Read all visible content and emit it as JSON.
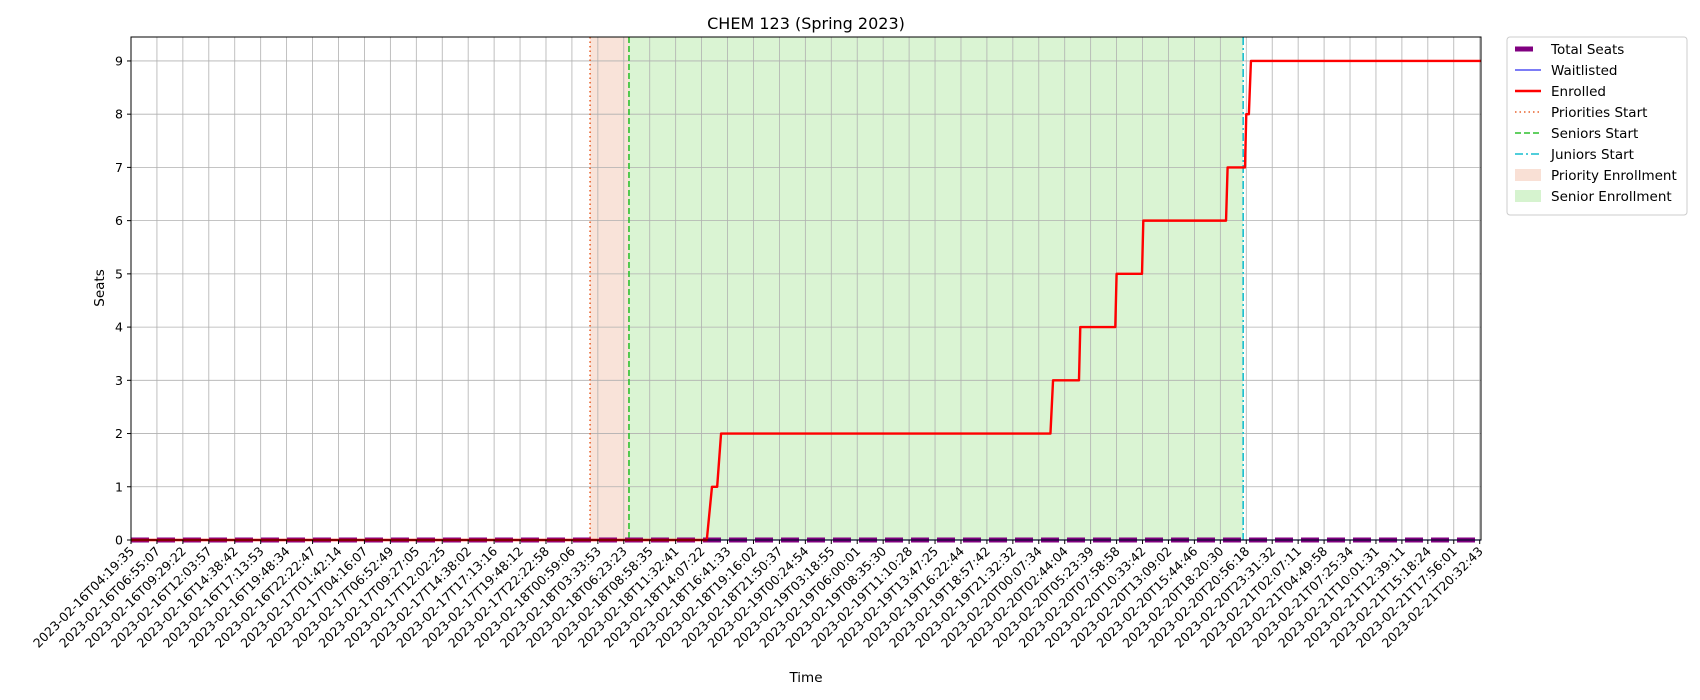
{
  "chart_data": {
    "type": "line",
    "title": "CHEM 123 (Spring 2023)",
    "xlabel": "Time",
    "ylabel": "Seats",
    "ylim": [
      0,
      9.45
    ],
    "yticks": [
      0,
      1,
      2,
      3,
      4,
      5,
      6,
      7,
      8,
      9
    ],
    "grid": true,
    "legend_position": "outside-top-right",
    "xticks": [
      "2023-02-16T04:19:35",
      "2023-02-16T06:55:07",
      "2023-02-16T09:29:22",
      "2023-02-16T12:03:57",
      "2023-02-16T14:38:42",
      "2023-02-16T17:13:53",
      "2023-02-16T19:48:34",
      "2023-02-16T22:22:47",
      "2023-02-17T01:42:14",
      "2023-02-17T04:16:07",
      "2023-02-17T06:52:49",
      "2023-02-17T09:27:05",
      "2023-02-17T12:02:25",
      "2023-02-17T14:38:02",
      "2023-02-17T17:13:16",
      "2023-02-17T19:48:12",
      "2023-02-17T22:22:58",
      "2023-02-18T00:59:06",
      "2023-02-18T03:33:53",
      "2023-02-18T06:23:23",
      "2023-02-18T08:58:35",
      "2023-02-18T11:32:41",
      "2023-02-18T14:07:22",
      "2023-02-18T16:41:33",
      "2023-02-18T19:16:02",
      "2023-02-18T21:50:37",
      "2023-02-19T00:24:54",
      "2023-02-19T03:18:55",
      "2023-02-19T06:00:01",
      "2023-02-19T08:35:30",
      "2023-02-19T11:10:28",
      "2023-02-19T13:47:25",
      "2023-02-19T16:22:44",
      "2023-02-19T18:57:42",
      "2023-02-19T21:32:32",
      "2023-02-20T00:07:34",
      "2023-02-20T02:44:04",
      "2023-02-20T05:23:39",
      "2023-02-20T07:58:58",
      "2023-02-20T10:33:42",
      "2023-02-20T13:09:02",
      "2023-02-20T15:44:46",
      "2023-02-20T18:20:30",
      "2023-02-20T20:56:18",
      "2023-02-20T23:31:32",
      "2023-02-21T02:07:11",
      "2023-02-21T04:49:58",
      "2023-02-21T07:25:34",
      "2023-02-21T10:01:31",
      "2023-02-21T12:39:11",
      "2023-02-21T15:18:24",
      "2023-02-21T17:56:01",
      "2023-02-21T20:32:43"
    ],
    "xlim_index": [
      0,
      52.05
    ],
    "spans": [
      {
        "name": "Priority Enrollment",
        "start": 17.7,
        "end": 19.2,
        "color": "#f4c7b3"
      },
      {
        "name": "Senior Enrollment",
        "start": 19.2,
        "end": 42.88,
        "color": "#b5eaa8"
      }
    ],
    "vlines": [
      {
        "name": "Priorities Start",
        "x": 17.7,
        "color": "#e8622c",
        "style": "dotted"
      },
      {
        "name": "Seniors Start",
        "x": 19.2,
        "color": "#2fc12f",
        "style": "dashed"
      },
      {
        "name": "Juniors Start",
        "x": 42.88,
        "color": "#17becf",
        "style": "dashdot"
      }
    ],
    "series": [
      {
        "name": "Total Seats",
        "color": "#800080",
        "style": "dashed-thick",
        "points": [
          [
            0,
            0
          ],
          [
            52.05,
            0
          ]
        ]
      },
      {
        "name": "Waitlisted",
        "color": "#2f2ff0",
        "style": "solid-thin",
        "points": [
          [
            0,
            0
          ],
          [
            52.05,
            0
          ]
        ]
      },
      {
        "name": "Enrolled",
        "color": "#ff0000",
        "style": "solid-thick",
        "points": [
          [
            0,
            0
          ],
          [
            22.2,
            0
          ],
          [
            22.4,
            1
          ],
          [
            22.6,
            1
          ],
          [
            22.75,
            2
          ],
          [
            35.45,
            2
          ],
          [
            35.55,
            3
          ],
          [
            36.55,
            3
          ],
          [
            36.6,
            4
          ],
          [
            37.95,
            4
          ],
          [
            38.0,
            5
          ],
          [
            38.98,
            5
          ],
          [
            39.03,
            6
          ],
          [
            42.22,
            6
          ],
          [
            42.28,
            7
          ],
          [
            42.95,
            7
          ],
          [
            43.0,
            8
          ],
          [
            43.1,
            8
          ],
          [
            43.18,
            9
          ],
          [
            52.05,
            9
          ]
        ]
      }
    ],
    "legend": [
      {
        "label": "Total Seats",
        "kind": "line",
        "color": "#800080",
        "style": "dashed-thick"
      },
      {
        "label": "Waitlisted",
        "kind": "line",
        "color": "#2f2ff0",
        "style": "solid-thin"
      },
      {
        "label": "Enrolled",
        "kind": "line",
        "color": "#ff0000",
        "style": "solid-thick"
      },
      {
        "label": "Priorities Start",
        "kind": "line",
        "color": "#e8622c",
        "style": "dotted"
      },
      {
        "label": "Seniors Start",
        "kind": "line",
        "color": "#2fc12f",
        "style": "dashed"
      },
      {
        "label": "Juniors Start",
        "kind": "line",
        "color": "#17becf",
        "style": "dashdot"
      },
      {
        "label": "Priority Enrollment",
        "kind": "patch",
        "color": "#f4c7b3"
      },
      {
        "label": "Senior Enrollment",
        "kind": "patch",
        "color": "#b5eaa8"
      }
    ]
  }
}
